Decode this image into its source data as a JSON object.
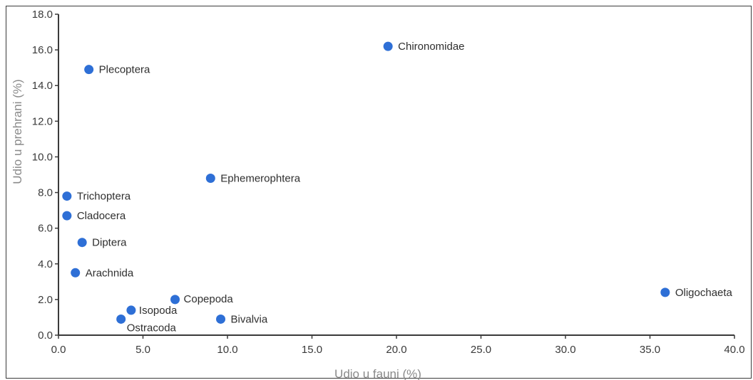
{
  "chart_data": {
    "type": "scatter",
    "xlabel": "Udio u fauni (%)",
    "ylabel": "Udio u prehrani (%)",
    "xlim": [
      0,
      40
    ],
    "ylim": [
      0,
      18
    ],
    "x_ticks": [
      "0.0",
      "5.0",
      "10.0",
      "15.0",
      "20.0",
      "25.0",
      "30.0",
      "35.0",
      "40.0"
    ],
    "y_ticks": [
      "0.0",
      "2.0",
      "4.0",
      "6.0",
      "8.0",
      "10.0",
      "12.0",
      "14.0",
      "16.0",
      "18.0"
    ],
    "grid": false,
    "point_color": "#2e6fd6",
    "points": [
      {
        "label": "Chironomidae",
        "x": 19.5,
        "y": 16.2
      },
      {
        "label": "Plecoptera",
        "x": 1.8,
        "y": 14.9
      },
      {
        "label": "Ephemerophtera",
        "x": 9.0,
        "y": 8.8
      },
      {
        "label": "Trichoptera",
        "x": 0.5,
        "y": 7.8
      },
      {
        "label": "Cladocera",
        "x": 0.5,
        "y": 6.7
      },
      {
        "label": "Diptera",
        "x": 1.4,
        "y": 5.2
      },
      {
        "label": "Arachnida",
        "x": 1.0,
        "y": 3.5
      },
      {
        "label": "Copepoda",
        "x": 6.9,
        "y": 2.0
      },
      {
        "label": "Isopoda",
        "x": 4.3,
        "y": 1.4
      },
      {
        "label": "Ostracoda",
        "x": 3.7,
        "y": 0.9
      },
      {
        "label": "Bivalvia",
        "x": 9.6,
        "y": 0.9
      },
      {
        "label": "Oligochaeta",
        "x": 35.9,
        "y": 2.4
      }
    ]
  }
}
